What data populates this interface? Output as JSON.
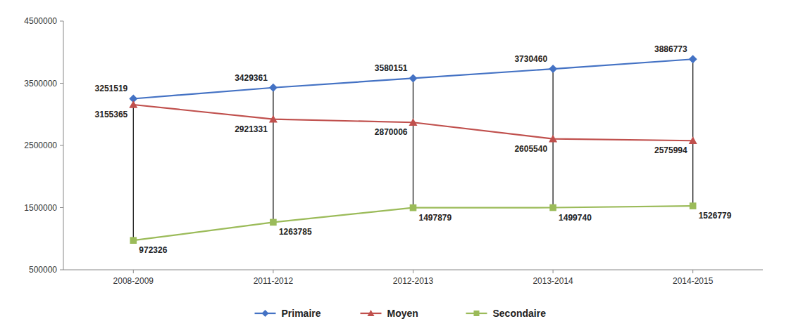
{
  "chart_data": {
    "type": "line",
    "categories": [
      "2008-2009",
      "2011-2012",
      "2012-2013",
      "2013-2014",
      "2014-2015"
    ],
    "series": [
      {
        "name": "Primaire",
        "color": "#4472C4",
        "marker": "diamond",
        "values": [
          3251519,
          3429361,
          3580151,
          3730460,
          3886773
        ]
      },
      {
        "name": "Moyen",
        "color": "#C0504D",
        "marker": "triangle",
        "values": [
          3155365,
          2921331,
          2870006,
          2605540,
          2575994
        ]
      },
      {
        "name": "Secondaire",
        "color": "#9BBB59",
        "marker": "square",
        "values": [
          972326,
          1263785,
          1497879,
          1499740,
          1526779
        ]
      }
    ],
    "ylim": [
      500000,
      4500000
    ],
    "yticks": [
      500000,
      1500000,
      2500000,
      3500000,
      4500000
    ],
    "grid": false,
    "legend": "bottom",
    "data_labels": true
  }
}
